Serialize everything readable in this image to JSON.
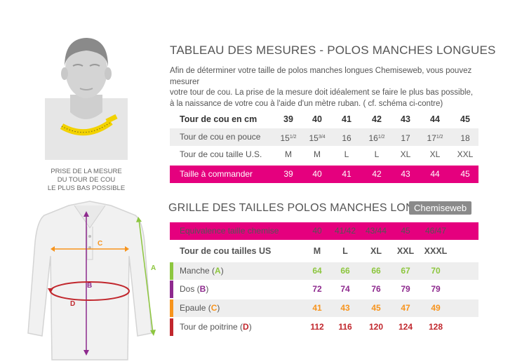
{
  "colors": {
    "pink": "#e5007e",
    "green": "#8dc63f",
    "purple": "#8e2a8e",
    "orange": "#f7941d",
    "red": "#c1272d"
  },
  "caption": [
    "PRISE DE LA MESURE",
    "DU TOUR DE COU",
    "LE PLUS BAS POSSIBLE"
  ],
  "table1": {
    "title": "TABLEAU DES MESURES - POLOS MANCHES LONGUES",
    "intro": [
      "Afin de déterminer votre taille de polos manches longues Chemiseweb, vous pouvez mesurer",
      "votre tour de cou. La prise de la mesure doit idéalement se faire le plus bas possible,",
      "à la naissance de votre cou à l'aide d'un mètre ruban. ( cf. schéma ci-contre)"
    ],
    "rows": [
      {
        "label": "Tour de cou en cm",
        "values": [
          "39",
          "40",
          "41",
          "42",
          "43",
          "44",
          "45"
        ]
      },
      {
        "label": "Tour de cou en pouce",
        "values": [
          [
            "15",
            "1/2"
          ],
          [
            "15",
            "3/4"
          ],
          [
            "16",
            ""
          ],
          [
            "16",
            "1/2"
          ],
          [
            "17",
            ""
          ],
          [
            "17",
            "1/2"
          ],
          [
            "18",
            ""
          ]
        ]
      },
      {
        "label": "Tour de cou taille U.S.",
        "values": [
          "M",
          "M",
          "L",
          "L",
          "XL",
          "XL",
          "XXL"
        ]
      },
      {
        "label": "Taille à commander",
        "values": [
          "39",
          "40",
          "41",
          "42",
          "43",
          "44",
          "45"
        ]
      }
    ]
  },
  "table2": {
    "title": "GRILLE DES TAILLES POLOS MANCHES LONGUES",
    "brand": "Chemiseweb",
    "equiv": {
      "label": "Equivalence taille chemise",
      "values": [
        "40",
        "41/42",
        "43/44",
        "45",
        "46/47"
      ]
    },
    "us": {
      "label": "Tour de cou tailles US",
      "values": [
        "M",
        "L",
        "XL",
        "XXL",
        "XXXL"
      ]
    },
    "rows": [
      {
        "label": "Manche (",
        "letter": "A",
        "end": ")",
        "values": [
          "64",
          "66",
          "66",
          "67",
          "70"
        ]
      },
      {
        "label": "Dos (",
        "letter": "B",
        "end": ")",
        "values": [
          "72",
          "74",
          "76",
          "79",
          "79"
        ]
      },
      {
        "label": "Epaule (",
        "letter": "C",
        "end": ")",
        "values": [
          "41",
          "43",
          "45",
          "47",
          "49"
        ]
      },
      {
        "label": "Tour de poitrine (",
        "letter": "D",
        "end": ")",
        "values": [
          "112",
          "116",
          "120",
          "124",
          "128"
        ]
      }
    ]
  },
  "diagram": {
    "A": "A",
    "B": "B",
    "C": "C",
    "D": "D"
  }
}
